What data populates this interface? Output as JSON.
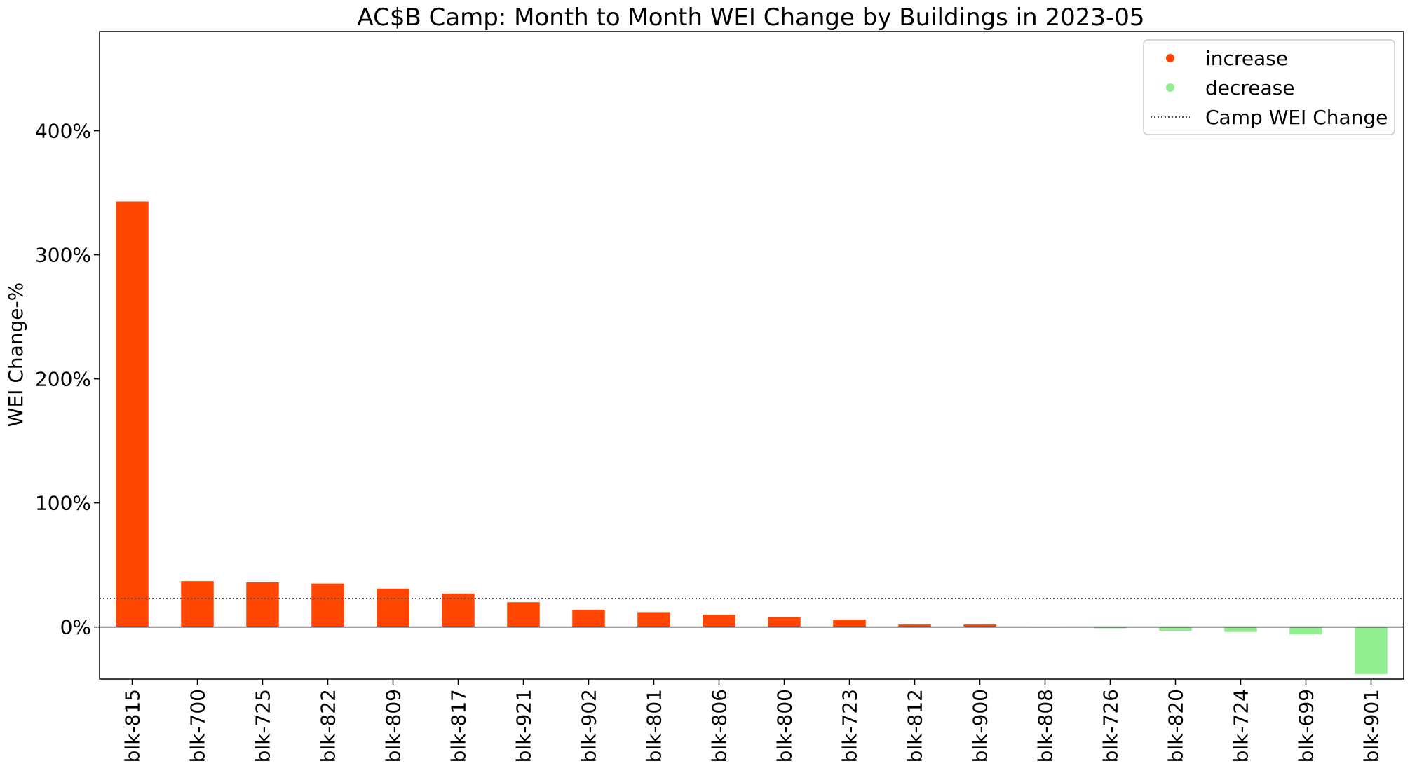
{
  "chart_data": {
    "type": "bar",
    "title": "AC$B Camp: Month to Month WEI Change by Buildings in 2023-05",
    "ylabel": "WEI Change-%",
    "xlabel": "",
    "categories": [
      "blk-815",
      "blk-700",
      "blk-725",
      "blk-822",
      "blk-809",
      "blk-817",
      "blk-921",
      "blk-902",
      "blk-801",
      "blk-806",
      "blk-800",
      "blk-723",
      "blk-812",
      "blk-900",
      "blk-808",
      "blk-726",
      "blk-820",
      "blk-724",
      "blk-699",
      "blk-901"
    ],
    "values": [
      343,
      37,
      36,
      35,
      31,
      27,
      20,
      14,
      12,
      10,
      8,
      6,
      2,
      2,
      0,
      -1,
      -3,
      -4,
      -6,
      -38
    ],
    "reference_line": {
      "label": "Camp WEI Change",
      "value": 23,
      "style": "dotted",
      "color": "#555555"
    },
    "ylim": [
      -42,
      480
    ],
    "yticks": [
      0,
      100,
      200,
      300,
      400
    ],
    "ytick_labels": [
      "0%",
      "100%",
      "200%",
      "300%",
      "400%"
    ],
    "grid": false,
    "legend_position": "top-right",
    "legend": [
      {
        "label": "increase",
        "color": "#ff4500",
        "marker": "dot"
      },
      {
        "label": "decrease",
        "color": "#90ee90",
        "marker": "dot"
      },
      {
        "label": "Camp WEI Change",
        "color": "#555555",
        "marker": "dotted-line"
      }
    ],
    "colors": {
      "increase": "#ff4500",
      "decrease": "#90ee90"
    }
  }
}
